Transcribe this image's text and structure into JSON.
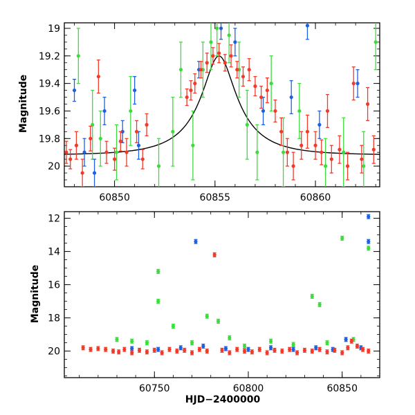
{
  "chart_data": [
    {
      "type": "scatter",
      "title": "",
      "xlabel": "",
      "ylabel": "Magnitude",
      "xlim": [
        60847.5,
        60863.2
      ],
      "ylim": [
        20.15,
        18.96
      ],
      "y_inverted": true,
      "xticks": [
        60850,
        60855,
        60860
      ],
      "yticks": [
        19,
        19.2,
        19.4,
        19.6,
        19.8,
        20
      ],
      "ytick_labels": [
        "19",
        "19.2",
        "19.4",
        "19.6",
        "19.8",
        "20"
      ],
      "colors": {
        "blue": "#1f5fe0",
        "green": "#3ddc3d",
        "red": "#f03a2a",
        "model": "#000000"
      },
      "model_curve": {
        "baseline": 19.92,
        "peak_mag": 19.2,
        "t0": 60855.2,
        "tE": 2.6,
        "u0": 0.33
      },
      "series": [
        {
          "color": "red",
          "points": [
            [
              60847.6,
              19.9,
              0.08
            ],
            [
              60847.8,
              19.95,
              0.07
            ],
            [
              60848.1,
              19.85,
              0.1
            ],
            [
              60848.4,
              20.05,
              0.1
            ],
            [
              60848.8,
              19.8,
              0.09
            ],
            [
              60849.2,
              19.35,
              0.12
            ],
            [
              60849.6,
              19.9,
              0.08
            ],
            [
              60850.0,
              19.95,
              0.08
            ],
            [
              60850.3,
              19.82,
              0.07
            ],
            [
              60850.6,
              19.9,
              0.1
            ],
            [
              60851.1,
              19.75,
              0.08
            ],
            [
              60851.4,
              19.95,
              0.07
            ],
            [
              60851.6,
              19.7,
              0.08
            ],
            [
              60853.6,
              19.5,
              0.06
            ],
            [
              60853.8,
              19.45,
              0.07
            ],
            [
              60854.0,
              19.4,
              0.07
            ],
            [
              60854.3,
              19.3,
              0.06
            ],
            [
              60854.6,
              19.25,
              0.07
            ],
            [
              60854.9,
              19.2,
              0.06
            ],
            [
              60855.2,
              19.18,
              0.07
            ],
            [
              60855.5,
              19.25,
              0.06
            ],
            [
              60855.8,
              19.2,
              0.08
            ],
            [
              60856.1,
              19.3,
              0.06
            ],
            [
              60856.4,
              19.35,
              0.07
            ],
            [
              60856.7,
              19.3,
              0.08
            ],
            [
              60857.0,
              19.42,
              0.07
            ],
            [
              60857.3,
              19.5,
              0.08
            ],
            [
              60857.6,
              19.45,
              0.09
            ],
            [
              60858.0,
              19.6,
              0.08
            ],
            [
              60858.3,
              19.75,
              0.1
            ],
            [
              60858.6,
              19.9,
              0.1
            ],
            [
              60858.9,
              20.0,
              0.1
            ],
            [
              60859.3,
              19.85,
              0.1
            ],
            [
              60859.6,
              19.75,
              0.12
            ],
            [
              60860.0,
              19.85,
              0.1
            ],
            [
              60860.3,
              19.9,
              0.09
            ],
            [
              60860.6,
              19.6,
              0.12
            ],
            [
              60860.8,
              19.95,
              0.1
            ],
            [
              60861.2,
              19.88,
              0.1
            ],
            [
              60861.6,
              20.0,
              0.1
            ],
            [
              60861.9,
              19.4,
              0.12
            ],
            [
              60862.3,
              19.95,
              0.1
            ],
            [
              60862.6,
              19.55,
              0.12
            ],
            [
              60862.9,
              19.88,
              0.1
            ]
          ]
        },
        {
          "color": "blue",
          "points": [
            [
              60848.0,
              19.45,
              0.08
            ],
            [
              60848.5,
              19.9,
              0.1
            ],
            [
              60849.0,
              20.05,
              0.1
            ],
            [
              60849.5,
              19.6,
              0.1
            ],
            [
              60850.4,
              19.75,
              0.08
            ],
            [
              60851.0,
              19.45,
              0.1
            ],
            [
              60851.2,
              19.85,
              0.1
            ],
            [
              60854.2,
              19.3,
              0.06
            ],
            [
              60855.3,
              19.0,
              0.08
            ],
            [
              60856.0,
              19.1,
              0.1
            ],
            [
              60857.4,
              19.6,
              0.1
            ],
            [
              60858.8,
              19.5,
              0.12
            ],
            [
              60859.6,
              18.98,
              0.1
            ],
            [
              60860.2,
              19.7,
              0.1
            ],
            [
              60862.1,
              19.4,
              0.1
            ]
          ]
        },
        {
          "color": "green",
          "points": [
            [
              60848.2,
              19.2,
              0.2
            ],
            [
              60848.9,
              19.7,
              0.25
            ],
            [
              60849.3,
              19.8,
              0.2
            ],
            [
              60850.1,
              19.9,
              0.2
            ],
            [
              60850.8,
              19.6,
              0.25
            ],
            [
              60852.2,
              20.0,
              0.2
            ],
            [
              60852.9,
              19.75,
              0.25
            ],
            [
              60853.3,
              19.3,
              0.2
            ],
            [
              60853.9,
              19.85,
              0.25
            ],
            [
              60854.4,
              19.3,
              0.2
            ],
            [
              60854.8,
              19.1,
              0.2
            ],
            [
              60855.1,
              19.0,
              0.2
            ],
            [
              60855.7,
              19.05,
              0.2
            ],
            [
              60856.2,
              19.3,
              0.2
            ],
            [
              60856.6,
              19.7,
              0.25
            ],
            [
              60857.1,
              19.9,
              0.2
            ],
            [
              60857.8,
              19.4,
              0.2
            ],
            [
              60858.4,
              19.9,
              0.25
            ],
            [
              60859.2,
              19.6,
              0.2
            ],
            [
              60860.5,
              20.0,
              0.2
            ],
            [
              60861.4,
              19.9,
              0.25
            ],
            [
              60862.4,
              20.0,
              0.25
            ],
            [
              60863.0,
              19.1,
              0.2
            ]
          ]
        }
      ]
    },
    {
      "type": "scatter",
      "title": "",
      "xlabel": "HJD−2400000",
      "ylabel": "Magnitude",
      "xlim": [
        60702,
        60870
      ],
      "ylim": [
        21.6,
        11.6
      ],
      "y_inverted": true,
      "xticks": [
        60750,
        60800,
        60850
      ],
      "yticks": [
        12,
        14,
        16,
        18,
        20
      ],
      "series": [
        {
          "color": "red",
          "points": [
            [
              60712,
              19.8
            ],
            [
              60716,
              19.9
            ],
            [
              60720,
              19.85
            ],
            [
              60724,
              19.9
            ],
            [
              60728,
              20.0
            ],
            [
              60731,
              20.05
            ],
            [
              60734,
              19.9
            ],
            [
              60738,
              20.1
            ],
            [
              60742,
              19.95
            ],
            [
              60746,
              20.05
            ],
            [
              60750,
              19.95
            ],
            [
              60754,
              20.1
            ],
            [
              60758,
              19.9
            ],
            [
              60762,
              20.0
            ],
            [
              60766,
              19.95
            ],
            [
              60770,
              20.1
            ],
            [
              60774,
              19.9
            ],
            [
              60782,
              14.2
            ],
            [
              60778,
              20.0
            ],
            [
              60786,
              19.95
            ],
            [
              60790,
              20.1
            ],
            [
              60794,
              19.9
            ],
            [
              60798,
              20.0
            ],
            [
              60802,
              20.05
            ],
            [
              60806,
              19.9
            ],
            [
              60810,
              20.1
            ],
            [
              60814,
              19.95
            ],
            [
              60818,
              20.0
            ],
            [
              60822,
              19.9
            ],
            [
              60826,
              20.1
            ],
            [
              60830,
              19.95
            ],
            [
              60834,
              20.0
            ],
            [
              60838,
              19.9
            ],
            [
              60842,
              20.05
            ],
            [
              60846,
              19.95
            ],
            [
              60850,
              20.1
            ],
            [
              60853,
              19.8
            ],
            [
              60855,
              19.4
            ],
            [
              60858,
              19.7
            ],
            [
              60861,
              19.9
            ],
            [
              60864,
              20.0
            ]
          ]
        },
        {
          "color": "blue",
          "points": [
            [
              60738,
              19.85
            ],
            [
              60752,
              19.9
            ],
            [
              60764,
              19.8
            ],
            [
              60772,
              13.4
            ],
            [
              60776,
              19.7
            ],
            [
              60788,
              19.85
            ],
            [
              60800,
              19.9
            ],
            [
              60812,
              19.8
            ],
            [
              60824,
              19.9
            ],
            [
              60836,
              19.8
            ],
            [
              60845,
              19.9
            ],
            [
              60852,
              19.3
            ],
            [
              60860,
              19.8
            ],
            [
              60864,
              13.4
            ],
            [
              60864,
              11.9
            ]
          ]
        },
        {
          "color": "green",
          "points": [
            [
              60730,
              19.3
            ],
            [
              60738,
              19.4
            ],
            [
              60746,
              19.5
            ],
            [
              60752,
              15.2
            ],
            [
              60752,
              17.0
            ],
            [
              60760,
              18.5
            ],
            [
              60770,
              19.5
            ],
            [
              60778,
              17.9
            ],
            [
              60784,
              18.2
            ],
            [
              60790,
              19.2
            ],
            [
              60798,
              19.7
            ],
            [
              60812,
              19.4
            ],
            [
              60824,
              19.6
            ],
            [
              60834,
              16.7
            ],
            [
              60838,
              17.2
            ],
            [
              60842,
              19.5
            ],
            [
              60850,
              13.2
            ],
            [
              60856,
              19.3
            ],
            [
              60864,
              13.8
            ]
          ]
        }
      ]
    }
  ]
}
